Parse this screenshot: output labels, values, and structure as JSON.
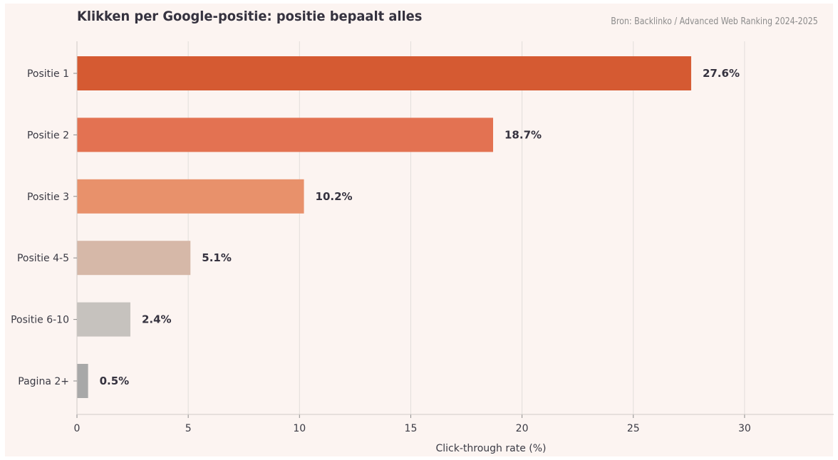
{
  "chart_data": {
    "type": "bar",
    "orientation": "horizontal",
    "title": "Klikken per Google-positie: positie bepaalt alles",
    "source": "Bron: Backlinko / Advanced Web Ranking 2024-2025",
    "categories": [
      "Positie 1",
      "Positie 2",
      "Positie 3",
      "Positie 4-5",
      "Positie 6-10",
      "Pagina 2+"
    ],
    "values": [
      27.6,
      18.7,
      10.2,
      5.1,
      2.4,
      0.5
    ],
    "value_labels": [
      "27.6%",
      "18.7%",
      "10.2%",
      "5.1%",
      "2.4%",
      "0.5%"
    ],
    "colors": [
      "#d55a32",
      "#e37252",
      "#e8916b",
      "#d6b8a8",
      "#c6c2be",
      "#a8a8a8"
    ],
    "xlabel": "Click-through rate (%)",
    "ylabel": "",
    "xlim": [
      0,
      34
    ],
    "xticks": [
      0,
      5,
      10,
      15,
      20,
      25,
      30
    ],
    "grid": "vertical",
    "legend": "none"
  }
}
